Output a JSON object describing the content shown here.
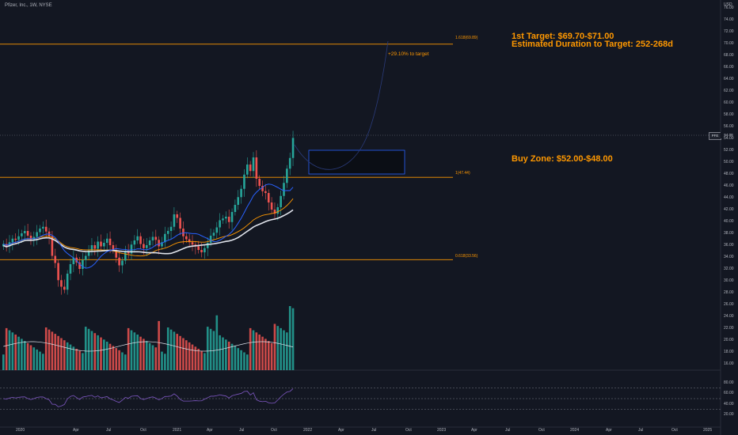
{
  "header": {
    "title": "Pfizer, Inc., 1W, NYSE",
    "currency": "USD"
  },
  "price_axis": [
    "76.00",
    "74.00",
    "72.00",
    "70.00",
    "68.00",
    "66.00",
    "64.00",
    "62.00",
    "60.00",
    "58.00",
    "56.00",
    "54.00",
    "52.00",
    "50.00",
    "48.00",
    "46.00",
    "44.00",
    "42.00",
    "40.00",
    "38.00",
    "36.00",
    "34.00",
    "32.00",
    "30.00",
    "28.00",
    "26.00",
    "24.00",
    "22.00",
    "20.00",
    "18.00",
    "16.00"
  ],
  "time_axis": [
    "2020",
    "Apr",
    "Jul",
    "Oct",
    "2021",
    "Apr",
    "Jul",
    "Oct",
    "2022",
    "Apr",
    "Jul",
    "Oct",
    "2023",
    "Apr",
    "Jul",
    "Oct",
    "2024",
    "Apr",
    "Jul",
    "Oct",
    "2025"
  ],
  "rsi_axis": [
    "80.00",
    "60.00",
    "40.00",
    "20.00"
  ],
  "last_price": {
    "symbol": "PFE",
    "value": "54.08"
  },
  "fib_levels": [
    {
      "label": "1.618(69.89)",
      "price": 69.89
    },
    {
      "label": "1(47.44)",
      "price": 47.44
    },
    {
      "label": "0.618(33.56)",
      "price": 33.56
    }
  ],
  "annotations": {
    "target_line1": "1st Target: $69.70-$71.00",
    "target_line2": "Estimated Duration to Target: 252-268d",
    "buy_zone": "Buy Zone: $52.00-$48.00",
    "percent_to_target": "+29.10% to target"
  },
  "buy_zone": {
    "top": 52.0,
    "bottom": 48.0
  },
  "colors": {
    "background": "#131722",
    "up": "#26a69a",
    "down": "#ef5350",
    "fib": "#ff9800",
    "annotation": "#ff9800",
    "ma_slow": "#e0e3eb",
    "ma_fast": "#2962ff",
    "ma_mid": "#ff9800",
    "rsi": "#7e57c2",
    "zone": "#2962ff"
  },
  "chart_data": {
    "type": "candlestick",
    "closes": [
      36.2,
      35.8,
      36.5,
      37.1,
      36.9,
      37.5,
      38.0,
      38.4,
      37.6,
      36.9,
      37.4,
      38.2,
      38.8,
      39.1,
      38.3,
      37.5,
      34.2,
      33.0,
      30.1,
      29.0,
      28.5,
      31.2,
      32.8,
      33.9,
      33.1,
      32.0,
      33.5,
      34.2,
      35.1,
      36.0,
      35.4,
      36.6,
      35.8,
      36.4,
      37.1,
      36.0,
      35.2,
      33.9,
      32.6,
      33.4,
      35.0,
      34.6,
      36.1,
      36.8,
      37.5,
      36.2,
      35.5,
      36.0,
      36.8,
      37.4,
      36.9,
      35.8,
      36.5,
      37.9,
      38.4,
      39.1,
      41.2,
      40.6,
      38.8,
      37.5,
      37.0,
      36.5,
      36.1,
      35.8,
      35.2,
      34.8,
      35.5,
      36.4,
      37.6,
      38.1,
      39.0,
      40.2,
      40.5,
      40.8,
      39.9,
      41.6,
      42.8,
      44.1,
      45.5,
      47.9,
      49.6,
      48.5,
      50.8,
      47.2,
      46.0,
      45.1,
      44.8,
      43.2,
      42.0,
      41.3,
      42.4,
      44.3,
      46.5,
      48.9,
      50.7,
      54.08
    ],
    "volume_scale_note": "relative"
  }
}
